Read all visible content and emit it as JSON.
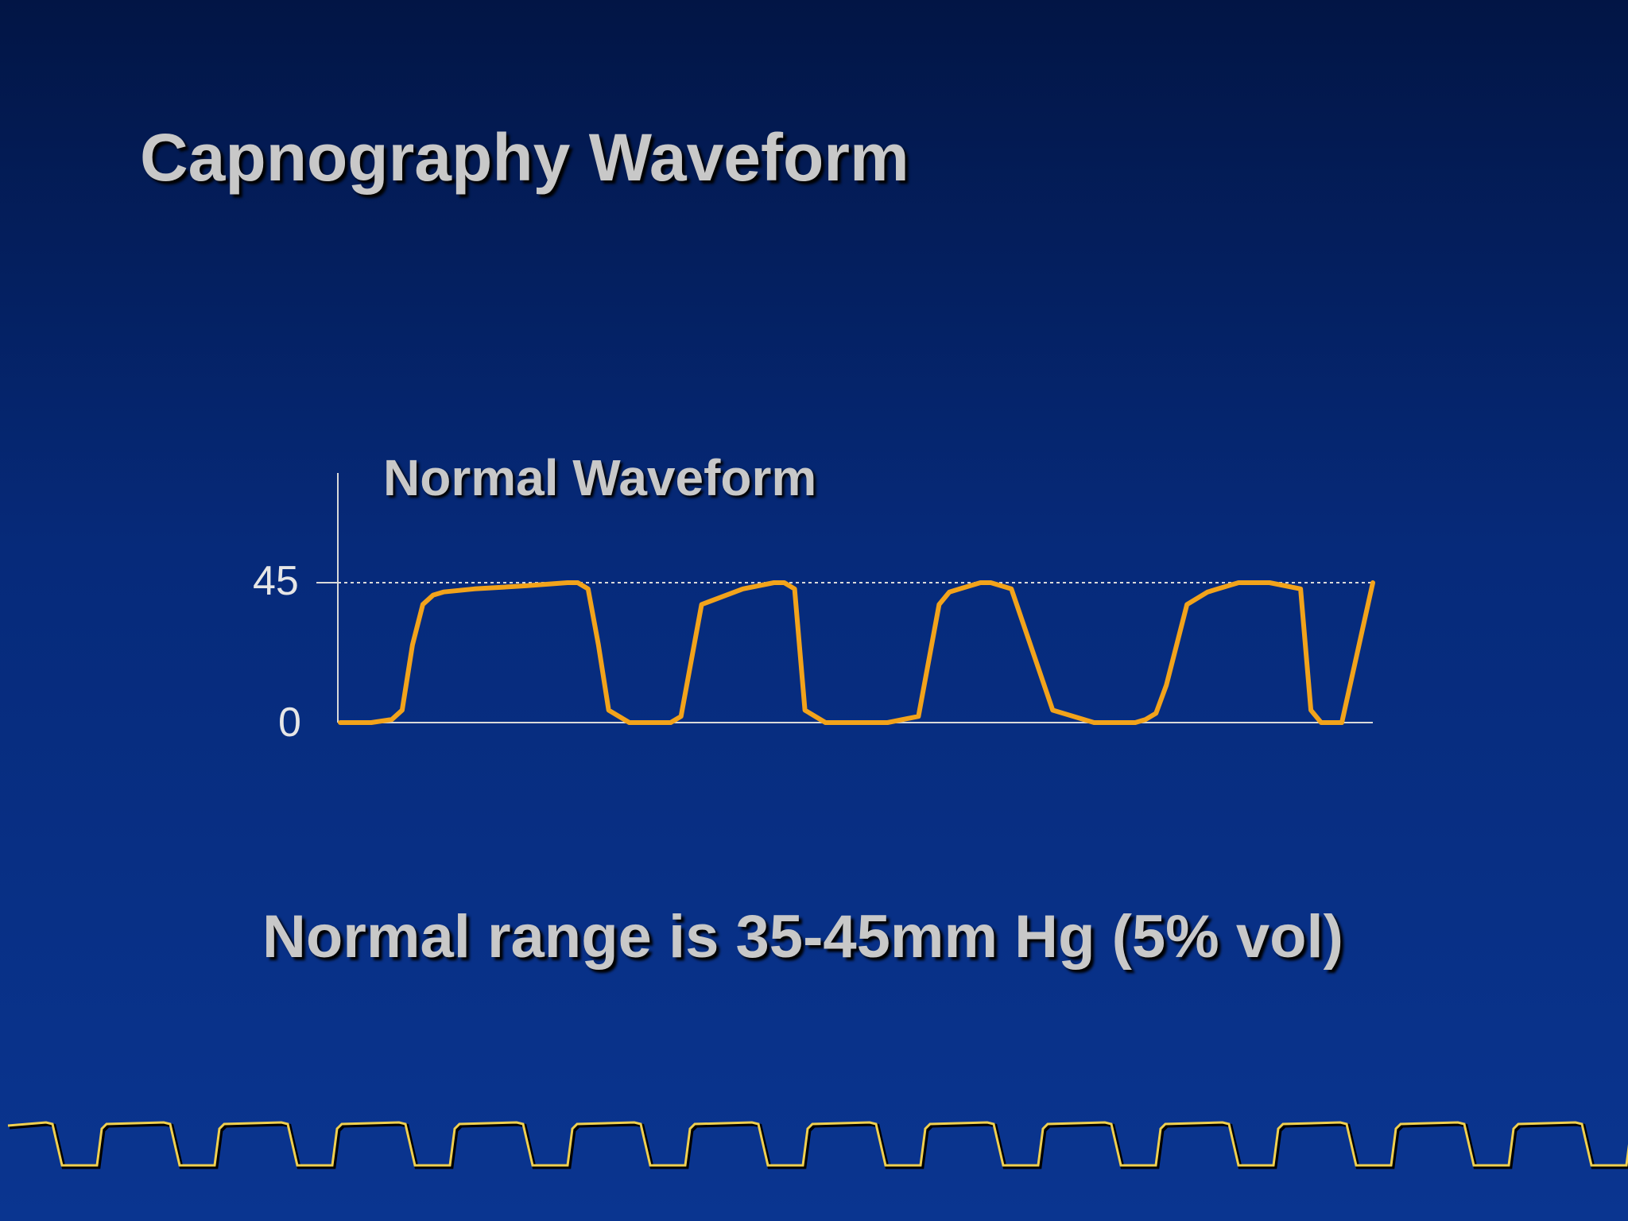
{
  "slide": {
    "title": "Capnography Waveform",
    "note": "Normal range is 35-45mm Hg (5% vol)"
  },
  "colors": {
    "waveform": "#f2a31b",
    "axis": "#d9d9d9",
    "bottom_wave": "#f0d050",
    "title_text": "#c8c8c8"
  },
  "chart_data": {
    "type": "line",
    "title": "Normal Waveform",
    "xlabel": "",
    "ylabel": "",
    "ylim": [
      0,
      45
    ],
    "yticks": [
      {
        "value": 45,
        "label": "45"
      },
      {
        "value": 0,
        "label": "0"
      }
    ],
    "reference_line": {
      "value": 45,
      "style": "dotted"
    },
    "grid": false,
    "series": [
      {
        "x": [
          0,
          3,
          5,
          6,
          7,
          8,
          9,
          10,
          13,
          18,
          22,
          23,
          24,
          25,
          26,
          28,
          29,
          30,
          32,
          33,
          35,
          39,
          42,
          43,
          44,
          45,
          47,
          50,
          53,
          56,
          58,
          59,
          60,
          61,
          62,
          63,
          65,
          69,
          73,
          77,
          78,
          79,
          80,
          82,
          84,
          85,
          86,
          87,
          90,
          93,
          94,
          95,
          96,
          97,
          100
        ],
        "y": [
          0,
          0,
          1,
          4,
          25,
          38,
          41,
          42,
          43,
          44,
          45,
          45,
          43,
          25,
          4,
          0,
          0,
          0,
          0,
          2,
          38,
          43,
          45,
          45,
          43,
          4,
          0,
          0,
          0,
          2,
          38,
          42,
          43,
          44,
          45,
          45,
          43,
          4,
          0,
          0,
          1,
          3,
          12,
          38,
          42,
          43,
          44,
          45,
          45,
          43,
          4,
          0,
          0,
          0,
          45
        ]
      }
    ]
  }
}
